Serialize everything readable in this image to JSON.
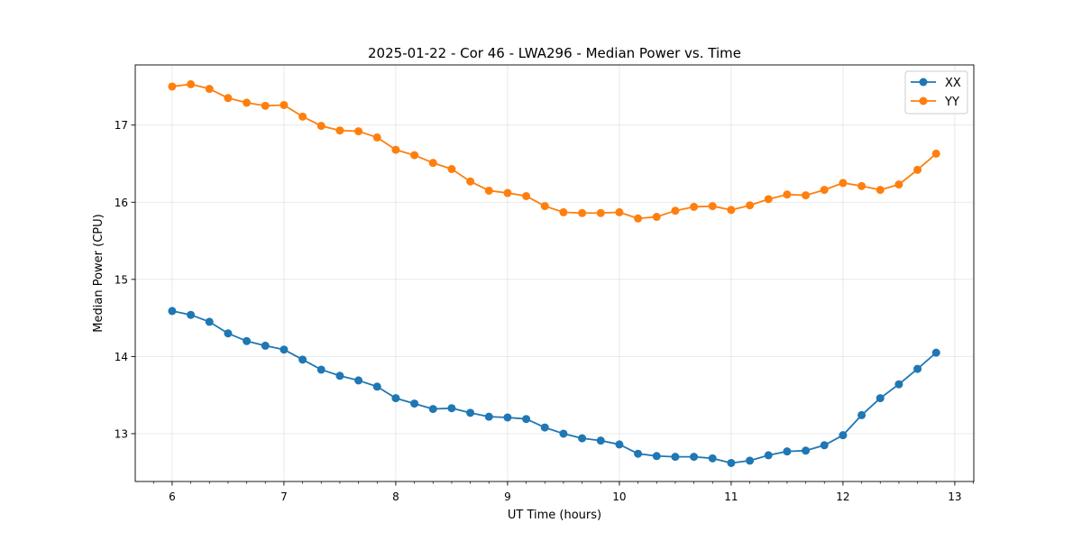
{
  "chart_data": {
    "type": "line",
    "title": "2025-01-22 - Cor 46 - LWA296 - Median Power vs. Time",
    "xlabel": "UT Time (hours)",
    "ylabel": "Median Power (CPU)",
    "xlim": [
      5.67,
      13.17
    ],
    "ylim": [
      12.38,
      17.78
    ],
    "xticks": [
      6,
      7,
      8,
      9,
      10,
      11,
      12,
      13
    ],
    "yticks": [
      13,
      14,
      15,
      16,
      17
    ],
    "grid": true,
    "legend_position": "top-right",
    "x": [
      6.0,
      6.1667,
      6.3333,
      6.5,
      6.6667,
      6.8333,
      7.0,
      7.1667,
      7.3333,
      7.5,
      7.6667,
      7.8333,
      8.0,
      8.1667,
      8.3333,
      8.5,
      8.6667,
      8.8333,
      9.0,
      9.1667,
      9.3333,
      9.5,
      9.6667,
      9.8333,
      10.0,
      10.1667,
      10.3333,
      10.5,
      10.6667,
      10.8333,
      11.0,
      11.1667,
      11.3333,
      11.5,
      11.6667,
      11.8333,
      12.0,
      12.1667,
      12.3333,
      12.5,
      12.6667,
      12.8333
    ],
    "series": [
      {
        "name": "XX",
        "color": "#1f77b4",
        "values": [
          14.59,
          14.54,
          14.45,
          14.3,
          14.2,
          14.14,
          14.09,
          13.96,
          13.83,
          13.75,
          13.69,
          13.61,
          13.46,
          13.39,
          13.32,
          13.33,
          13.27,
          13.22,
          13.21,
          13.19,
          13.08,
          13.0,
          12.94,
          12.91,
          12.86,
          12.74,
          12.71,
          12.7,
          12.7,
          12.68,
          12.62,
          12.65,
          12.72,
          12.77,
          12.78,
          12.85,
          12.98,
          13.24,
          13.46,
          13.64,
          13.84,
          14.05
        ]
      },
      {
        "name": "YY",
        "color": "#ff7f0e",
        "values": [
          17.5,
          17.53,
          17.47,
          17.35,
          17.29,
          17.25,
          17.26,
          17.11,
          16.99,
          16.93,
          16.92,
          16.84,
          16.68,
          16.61,
          16.51,
          16.43,
          16.27,
          16.15,
          16.12,
          16.08,
          15.95,
          15.87,
          15.86,
          15.86,
          15.87,
          15.79,
          15.81,
          15.89,
          15.94,
          15.95,
          15.9,
          15.96,
          16.04,
          16.1,
          16.09,
          16.16,
          16.25,
          16.21,
          16.16,
          16.23,
          16.42,
          16.63
        ]
      }
    ]
  }
}
